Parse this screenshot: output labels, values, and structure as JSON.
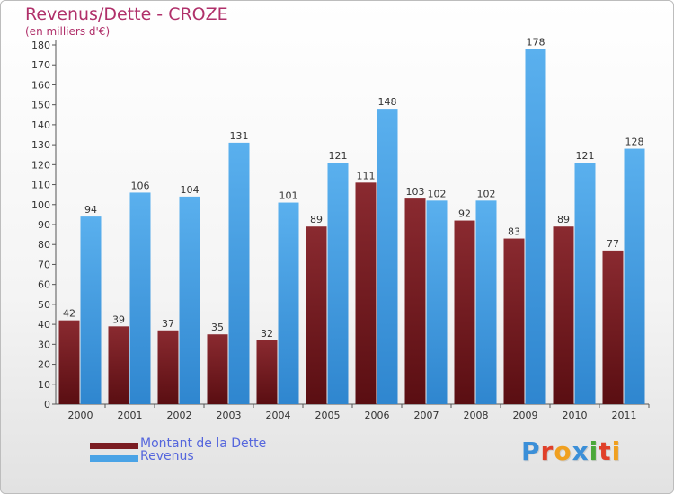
{
  "chart_data": {
    "type": "bar",
    "title": "Revenus/Dette - CROZE",
    "subtitle": "(en milliers d'€)",
    "categories": [
      "2000",
      "2001",
      "2002",
      "2003",
      "2004",
      "2005",
      "2006",
      "2007",
      "2008",
      "2009",
      "2010",
      "2011"
    ],
    "series": [
      {
        "name": "Montant de la Dette",
        "color": "#7a1c22",
        "values": [
          42,
          39,
          37,
          35,
          32,
          89,
          111,
          103,
          92,
          83,
          89,
          77
        ]
      },
      {
        "name": "Revenus",
        "color": "#4aa3e6",
        "values": [
          94,
          106,
          104,
          131,
          101,
          121,
          148,
          102,
          102,
          178,
          121,
          128
        ]
      }
    ],
    "ylim": [
      0,
      180
    ],
    "ytick_step": 10,
    "grid": false,
    "legend_position": "bottom-left"
  },
  "logo": {
    "text": "Proxiti",
    "letter_colors": [
      "#3b8fd8",
      "#e0402a",
      "#f0a020",
      "#3b8fd8",
      "#4aa83a",
      "#e0402a",
      "#f0a020"
    ]
  }
}
